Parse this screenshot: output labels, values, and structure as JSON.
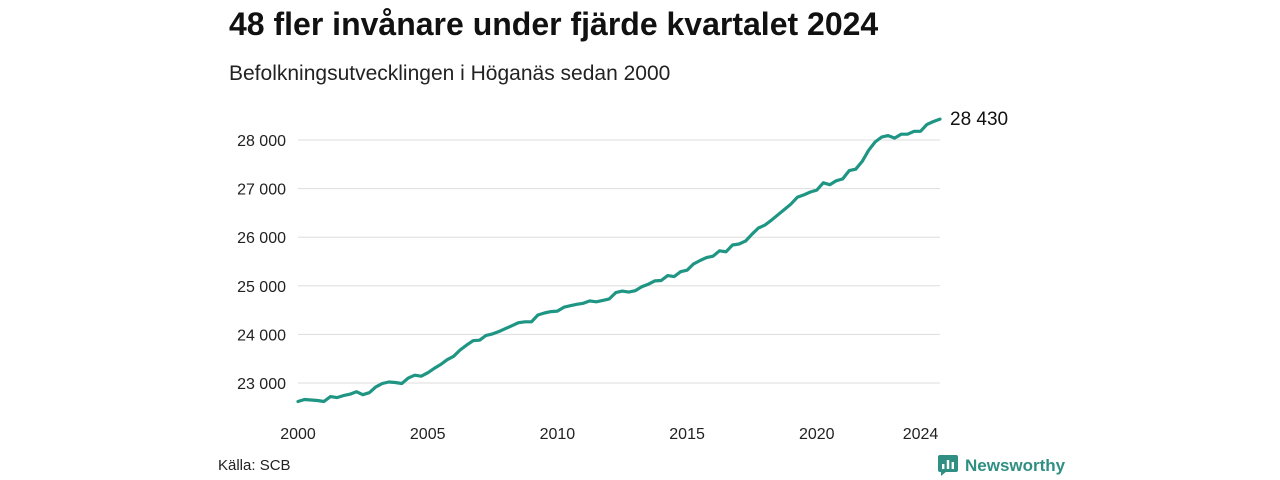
{
  "title": "48 fler invånare under fjärde kvartalet 2024",
  "subtitle": "Befolkningsutvecklingen i Höganäs sedan 2000",
  "source": "Källa: SCB",
  "brand": {
    "name": "Newsworthy",
    "icon": "newsworthy-logo-icon",
    "color": "#2f8f83"
  },
  "chart_data": {
    "type": "line",
    "title": "48 fler invånare under fjärde kvartalet 2024",
    "subtitle": "Befolkningsutvecklingen i Höganäs sedan 2000",
    "xlabel": "",
    "ylabel": "",
    "xlim": [
      2000,
      2024.75
    ],
    "ylim": [
      22500,
      28600
    ],
    "grid": true,
    "line_color": "#1f9583",
    "y_ticks": [
      {
        "value": 23000,
        "label": "23 000"
      },
      {
        "value": 24000,
        "label": "24 000"
      },
      {
        "value": 25000,
        "label": "25 000"
      },
      {
        "value": 26000,
        "label": "26 000"
      },
      {
        "value": 27000,
        "label": "27 000"
      },
      {
        "value": 28000,
        "label": "28 000"
      }
    ],
    "x_ticks": [
      {
        "value": 2000,
        "label": "2000"
      },
      {
        "value": 2005,
        "label": "2005"
      },
      {
        "value": 2010,
        "label": "2010"
      },
      {
        "value": 2015,
        "label": "2015"
      },
      {
        "value": 2020,
        "label": "2020"
      },
      {
        "value": 2024,
        "label": "2024"
      }
    ],
    "end_label": "28 430",
    "series": [
      {
        "x": [
          2000.0,
          2000.25,
          2000.5,
          2000.75,
          2001.0,
          2001.25,
          2001.5,
          2001.75,
          2002.0,
          2002.25,
          2002.5,
          2002.75,
          2003.0,
          2003.25,
          2003.5,
          2003.75,
          2004.0,
          2004.25,
          2004.5,
          2004.75,
          2005.0,
          2005.25,
          2005.5,
          2005.75,
          2006.0,
          2006.25,
          2006.5,
          2006.75,
          2007.0,
          2007.25,
          2007.5,
          2007.75,
          2008.0,
          2008.25,
          2008.5,
          2008.75,
          2009.0,
          2009.25,
          2009.5,
          2009.75,
          2010.0,
          2010.25,
          2010.5,
          2010.75,
          2011.0,
          2011.25,
          2011.5,
          2011.75,
          2012.0,
          2012.25,
          2012.5,
          2012.75,
          2013.0,
          2013.25,
          2013.5,
          2013.75,
          2014.0,
          2014.25,
          2014.5,
          2014.75,
          2015.0,
          2015.25,
          2015.5,
          2015.75,
          2016.0,
          2016.25,
          2016.5,
          2016.75,
          2017.0,
          2017.25,
          2017.5,
          2017.75,
          2018.0,
          2018.25,
          2018.5,
          2018.75,
          2019.0,
          2019.25,
          2019.5,
          2019.75,
          2020.0,
          2020.25,
          2020.5,
          2020.75,
          2021.0,
          2021.25,
          2021.5,
          2021.75,
          2022.0,
          2022.25,
          2022.5,
          2022.75,
          2023.0,
          2023.25,
          2023.5,
          2023.75,
          2024.0,
          2024.25,
          2024.5,
          2024.75
        ],
        "values": [
          22620,
          22660,
          22650,
          22640,
          22620,
          22720,
          22700,
          22740,
          22770,
          22820,
          22760,
          22800,
          22920,
          22990,
          23020,
          23010,
          22990,
          23100,
          23160,
          23140,
          23210,
          23300,
          23380,
          23480,
          23550,
          23680,
          23780,
          23870,
          23880,
          23980,
          24010,
          24060,
          24120,
          24180,
          24240,
          24260,
          24260,
          24400,
          24440,
          24470,
          24480,
          24560,
          24590,
          24620,
          24640,
          24690,
          24670,
          24700,
          24730,
          24860,
          24890,
          24870,
          24900,
          24980,
          25030,
          25100,
          25110,
          25210,
          25190,
          25290,
          25320,
          25450,
          25520,
          25580,
          25610,
          25720,
          25700,
          25840,
          25860,
          25920,
          26060,
          26190,
          26250,
          26350,
          26460,
          26570,
          26680,
          26820,
          26870,
          26930,
          26970,
          27120,
          27080,
          27160,
          27200,
          27370,
          27400,
          27560,
          27790,
          27960,
          28060,
          28090,
          28040,
          28120,
          28120,
          28180,
          28180,
          28320,
          28380,
          28430
        ]
      }
    ]
  }
}
